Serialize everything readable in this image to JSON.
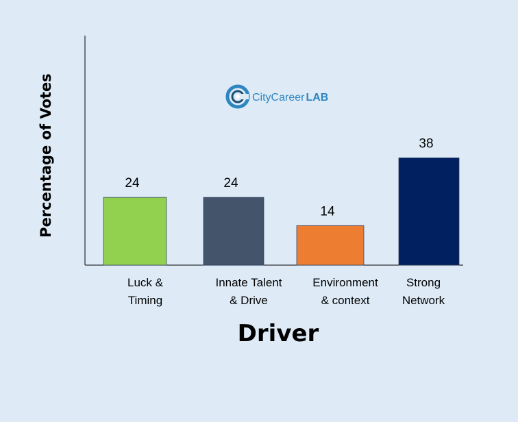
{
  "chart_data": {
    "type": "bar",
    "categories": [
      [
        "Luck &",
        "Timing"
      ],
      [
        "Innate Talent",
        "& Drive"
      ],
      [
        "Environment",
        "& context"
      ],
      [
        "Strong",
        "Network"
      ]
    ],
    "values": [
      24,
      24,
      14,
      38
    ],
    "data_labels": [
      "24",
      "24",
      "14",
      "38"
    ],
    "colors": [
      "#92d050",
      "#44546a",
      "#ed7d31",
      "#002060"
    ],
    "xlabel": "Driver",
    "ylabel": "Percentage of Votes",
    "ylim": [
      0,
      40
    ],
    "grid": false,
    "legend": "none"
  },
  "logo": {
    "text_city": "CityCareer",
    "text_lab": "LAB",
    "colors": {
      "ring_outer": "#2e86c1",
      "ring_inner": "#1b4f72",
      "text": "#2e86c1"
    }
  }
}
